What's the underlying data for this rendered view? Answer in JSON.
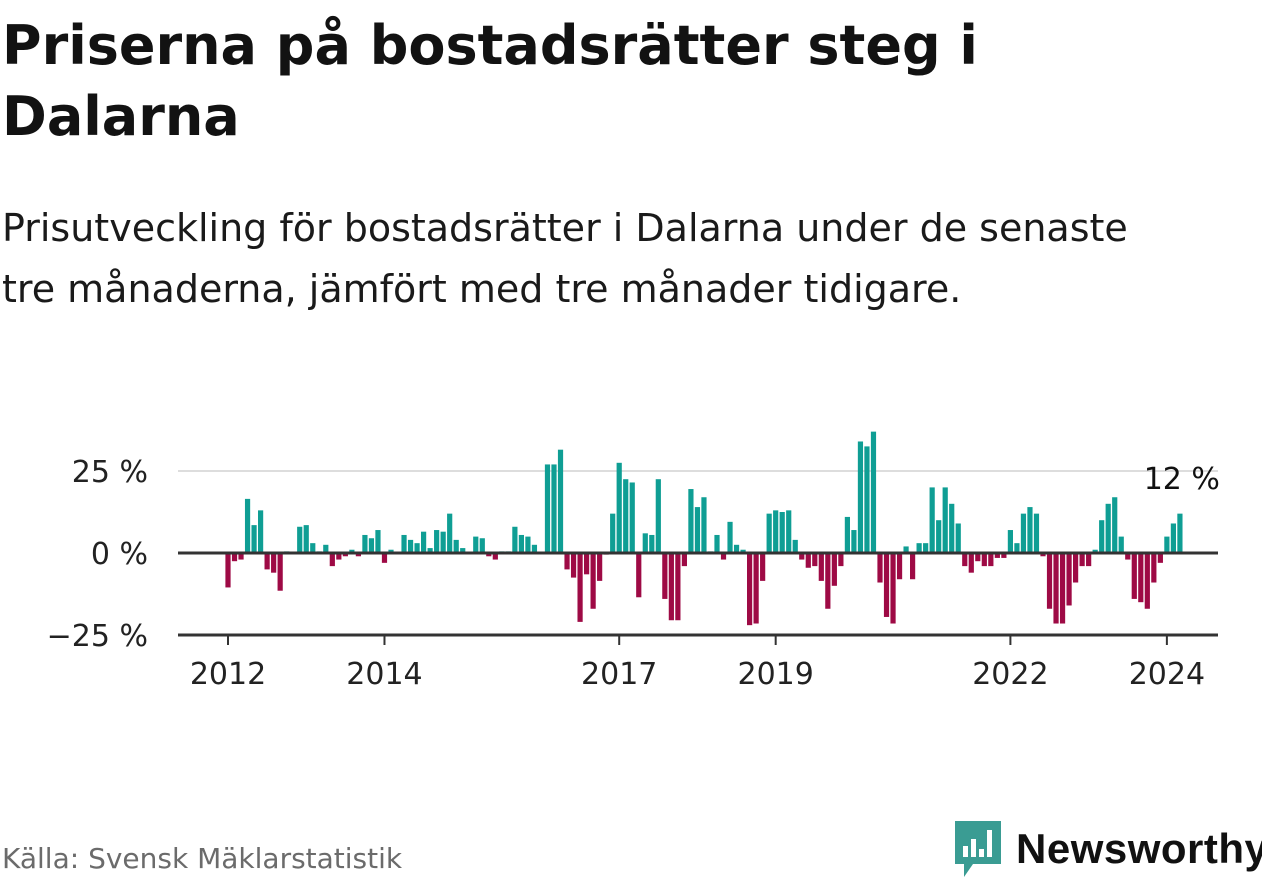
{
  "header": {
    "title": "Priserna på bostadsrätter steg i Dalarna",
    "subtitle": "Prisutveckling för bostadsrätter i Dalarna under de senaste tre månaderna, jämfört med tre månader tidigare."
  },
  "footer": {
    "source": "Källa: Svensk Mäklarstatistik",
    "brand": "Newsworthy"
  },
  "colors": {
    "positive": "#0f9e94",
    "negative": "#9e0a45",
    "brand": "#3a9c93",
    "axis": "#333333",
    "grid": "#dddddd"
  },
  "chart_data": {
    "type": "bar",
    "title": "Priserna på bostadsrätter steg i Dalarna",
    "xlabel": "",
    "ylabel": "",
    "unit": "%",
    "x_start": "2012-01",
    "ylim": [
      -25,
      40
    ],
    "yticks": [
      {
        "value": 25,
        "label": "25 %"
      },
      {
        "value": 0,
        "label": "0 %"
      },
      {
        "value": -25,
        "label": "−25 %"
      }
    ],
    "xticks": [
      {
        "index": 0,
        "label": "2012"
      },
      {
        "index": 24,
        "label": "2014"
      },
      {
        "index": 60,
        "label": "2017"
      },
      {
        "index": 84,
        "label": "2019"
      },
      {
        "index": 120,
        "label": "2022"
      },
      {
        "index": 144,
        "label": "2024"
      }
    ],
    "last_value_label": "12 %",
    "values": [
      -10.5,
      -2.5,
      -2.0,
      16.5,
      8.5,
      13.0,
      -5.0,
      -6.0,
      -11.5,
      0.5,
      0,
      8.0,
      8.5,
      3.0,
      0.5,
      2.5,
      -4.0,
      -2.0,
      -1.0,
      1.0,
      -1.0,
      5.5,
      4.5,
      7.0,
      -3.0,
      1.0,
      0,
      5.5,
      4.0,
      3.0,
      6.5,
      1.5,
      7.0,
      6.5,
      12.0,
      4.0,
      1.5,
      0,
      5.0,
      4.5,
      -1.0,
      -2.0,
      0.5,
      0.5,
      8.0,
      5.5,
      5.0,
      2.5,
      0,
      27.0,
      27.0,
      31.5,
      -5.0,
      -7.5,
      -21.0,
      -6.5,
      -17.0,
      -8.5,
      -0.5,
      12.0,
      27.5,
      22.5,
      21.5,
      -13.5,
      6.0,
      5.5,
      22.5,
      -14.0,
      -20.5,
      -20.5,
      -4.0,
      19.5,
      14.0,
      17.0,
      0.5,
      5.5,
      -2.0,
      9.5,
      2.5,
      1.0,
      -22.0,
      -21.5,
      -8.5,
      12.0,
      13.0,
      12.5,
      13.0,
      4.0,
      -2.0,
      -4.5,
      -4.0,
      -8.5,
      -17.0,
      -10.0,
      -4.0,
      11.0,
      7.0,
      34.0,
      32.5,
      37.0,
      -9.0,
      -19.5,
      -21.5,
      -8.0,
      2.0,
      -8.0,
      3.0,
      3.0,
      20.0,
      10.0,
      20.0,
      15.0,
      9.0,
      -4.0,
      -6.0,
      -2.5,
      -4.0,
      -4.0,
      -1.5,
      -1.5,
      7.0,
      3.0,
      12.0,
      14.0,
      12.0,
      -1.0,
      -17.0,
      -21.5,
      -21.5,
      -16.0,
      -9.0,
      -4.0,
      -4.0,
      1.0,
      10.0,
      15.0,
      17.0,
      5.0,
      -2.0,
      -14.0,
      -15.0,
      -17.0,
      -9.0,
      -3.0,
      5.0,
      9.0,
      12.0
    ]
  }
}
